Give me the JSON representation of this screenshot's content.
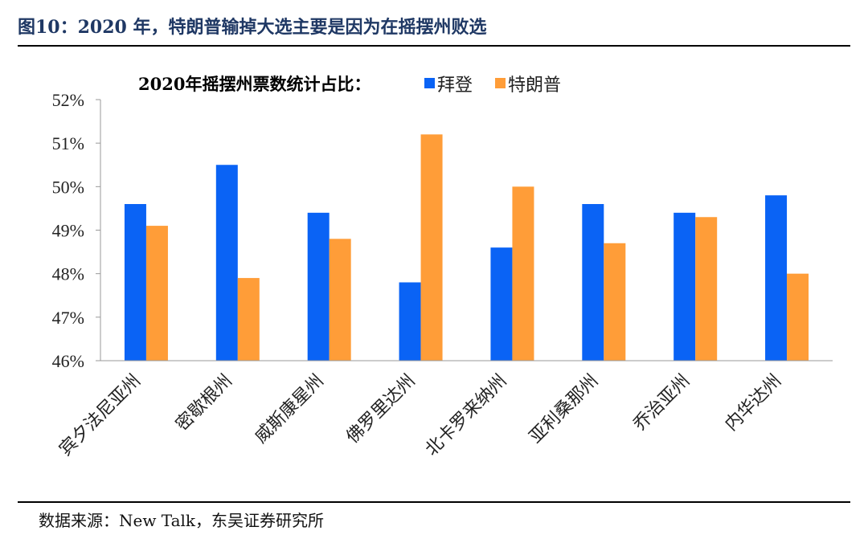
{
  "figure": {
    "title": "图10：2020 年，特朗普输掉大选主要是因为在摇摆州败选",
    "source": "数据来源：New Talk，东吴证券研究所"
  },
  "chart_data": {
    "type": "bar",
    "title": "2020年摇摆州票数统计占比：",
    "categories": [
      "宾夕法尼亚州",
      "密歇根州",
      "威斯康星州",
      "佛罗里达州",
      "北卡罗来纳州",
      "亚利桑那州",
      "乔治亚州",
      "内华达州"
    ],
    "series": [
      {
        "name": "拜登",
        "color": "#0a63f5",
        "values": [
          49.6,
          50.5,
          49.4,
          47.8,
          48.6,
          49.6,
          49.4,
          49.8
        ]
      },
      {
        "name": "特朗普",
        "color": "#ff9d38",
        "values": [
          49.1,
          47.9,
          48.8,
          51.2,
          50.0,
          48.7,
          49.3,
          48.0
        ]
      }
    ],
    "ylim": [
      46,
      52
    ],
    "yticks": [
      "46%",
      "47%",
      "48%",
      "49%",
      "50%",
      "51%",
      "52%"
    ],
    "grid": false,
    "legend": "top"
  }
}
